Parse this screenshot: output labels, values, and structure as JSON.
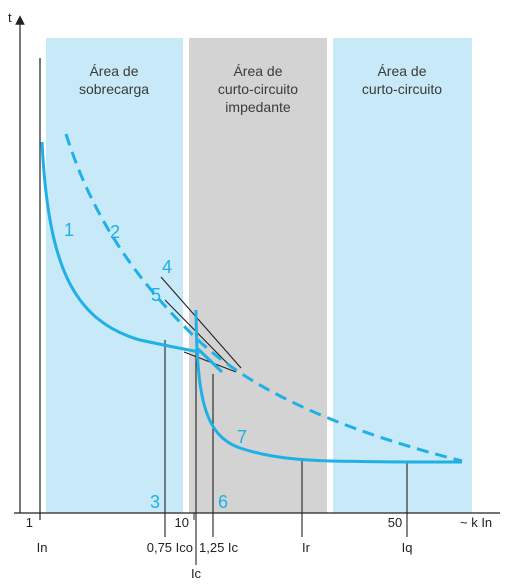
{
  "zones": [
    {
      "lines": [
        "Área de",
        "sobrecarga"
      ],
      "color": "#c7e9f8"
    },
    {
      "lines": [
        "Área de",
        "curto-circuito",
        "impedante"
      ],
      "color": "#d3d3d3"
    },
    {
      "lines": [
        "Área de",
        "curto-circuito"
      ],
      "color": "#c7e9f8"
    }
  ],
  "axes": {
    "y_label": "t",
    "x_label": "~ k In"
  },
  "ticks": {
    "t1": "1",
    "t10": "10",
    "t50": "50",
    "in": "In",
    "ir": "Ir",
    "iq": "Iq",
    "ico": "0,75 Ico",
    "ic125": "1,25 Ic",
    "ic": "Ic"
  },
  "curve_labels": [
    "1",
    "2",
    "3",
    "4",
    "5",
    "6",
    "7"
  ],
  "colors": {
    "curve": "#1fb0e6",
    "axis": "#222222",
    "tolerance": "#222222"
  }
}
